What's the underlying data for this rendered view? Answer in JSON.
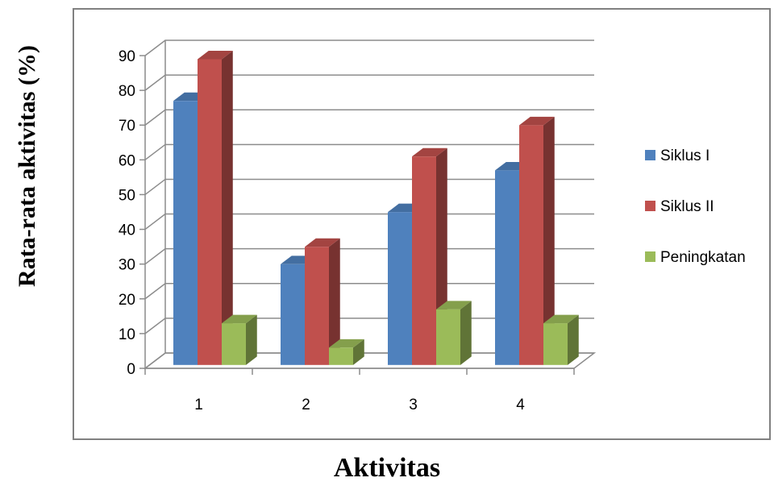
{
  "chart_data": {
    "type": "bar",
    "categories": [
      "1",
      "2",
      "3",
      "4"
    ],
    "series": [
      {
        "name": "Siklus I",
        "values": [
          76,
          29,
          44,
          56
        ],
        "color": "#4F81BD"
      },
      {
        "name": "Siklus II",
        "values": [
          88,
          34,
          60,
          69
        ],
        "color": "#C0504D"
      },
      {
        "name": "Peningkatan",
        "values": [
          12,
          5,
          16,
          12
        ],
        "color": "#9BBB59"
      }
    ],
    "title": "",
    "xlabel": "Aktivitas",
    "ylabel": "Rata-rata aktivitas (%)",
    "ylim": [
      0,
      90
    ],
    "yticks": [
      "0",
      "10",
      "20",
      "30",
      "40",
      "50",
      "60",
      "70",
      "80",
      "90"
    ],
    "grid": true,
    "legend": "right",
    "style": "3d-clustered-column"
  }
}
